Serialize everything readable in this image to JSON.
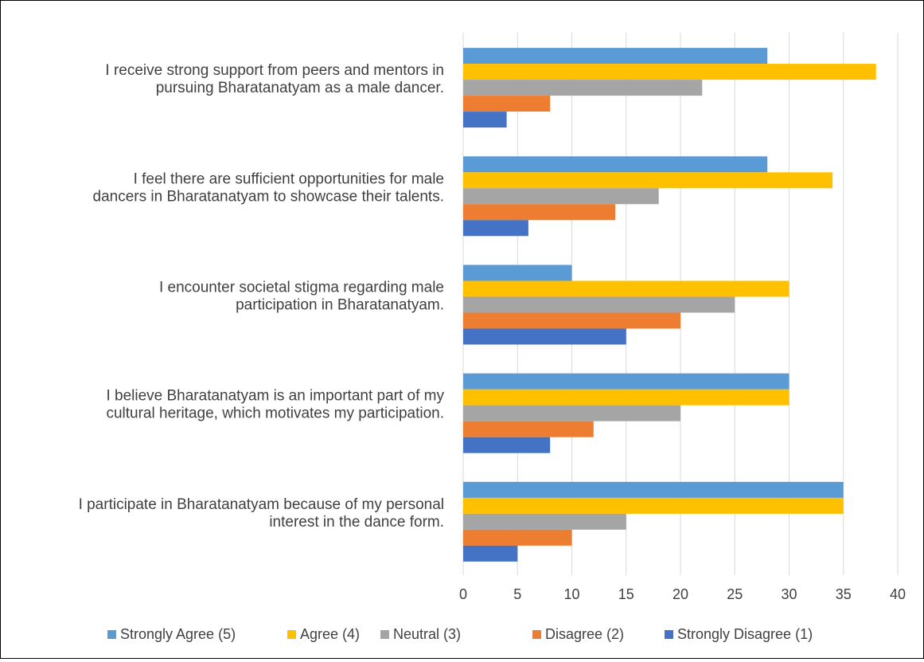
{
  "chart_data": {
    "type": "bar",
    "orientation": "horizontal",
    "categories": [
      [
        "I receive strong support from peers and mentors in",
        "pursuing Bharatanatyam as a male dancer."
      ],
      [
        "I feel there are sufficient opportunities for male",
        "dancers in Bharatanatyam to showcase their talents."
      ],
      [
        "I encounter societal stigma regarding male",
        "participation in Bharatanatyam."
      ],
      [
        "I believe Bharatanatyam is an important part of my",
        "cultural heritage, which motivates my participation."
      ],
      [
        "I participate in Bharatanatyam because of my personal",
        "interest in the dance form."
      ]
    ],
    "series": [
      {
        "name": "Strongly Agree (5)",
        "color": "#5B9BD5",
        "values": [
          28,
          28,
          10,
          30,
          35
        ]
      },
      {
        "name": "Agree (4)",
        "color": "#FFC000",
        "values": [
          38,
          34,
          30,
          30,
          35
        ]
      },
      {
        "name": "Neutral (3)",
        "color": "#A5A5A5",
        "values": [
          22,
          18,
          25,
          20,
          15
        ]
      },
      {
        "name": "Disagree (2)",
        "color": "#ED7D31",
        "values": [
          8,
          14,
          20,
          12,
          10
        ]
      },
      {
        "name": "Strongly Disagree (1)",
        "color": "#4472C4",
        "values": [
          4,
          6,
          15,
          8,
          5
        ]
      }
    ],
    "xlim": [
      0,
      40
    ],
    "xticks": [
      "0",
      "5",
      "10",
      "15",
      "20",
      "25",
      "30",
      "35",
      "40"
    ],
    "grid": true,
    "legend_position": "bottom"
  }
}
